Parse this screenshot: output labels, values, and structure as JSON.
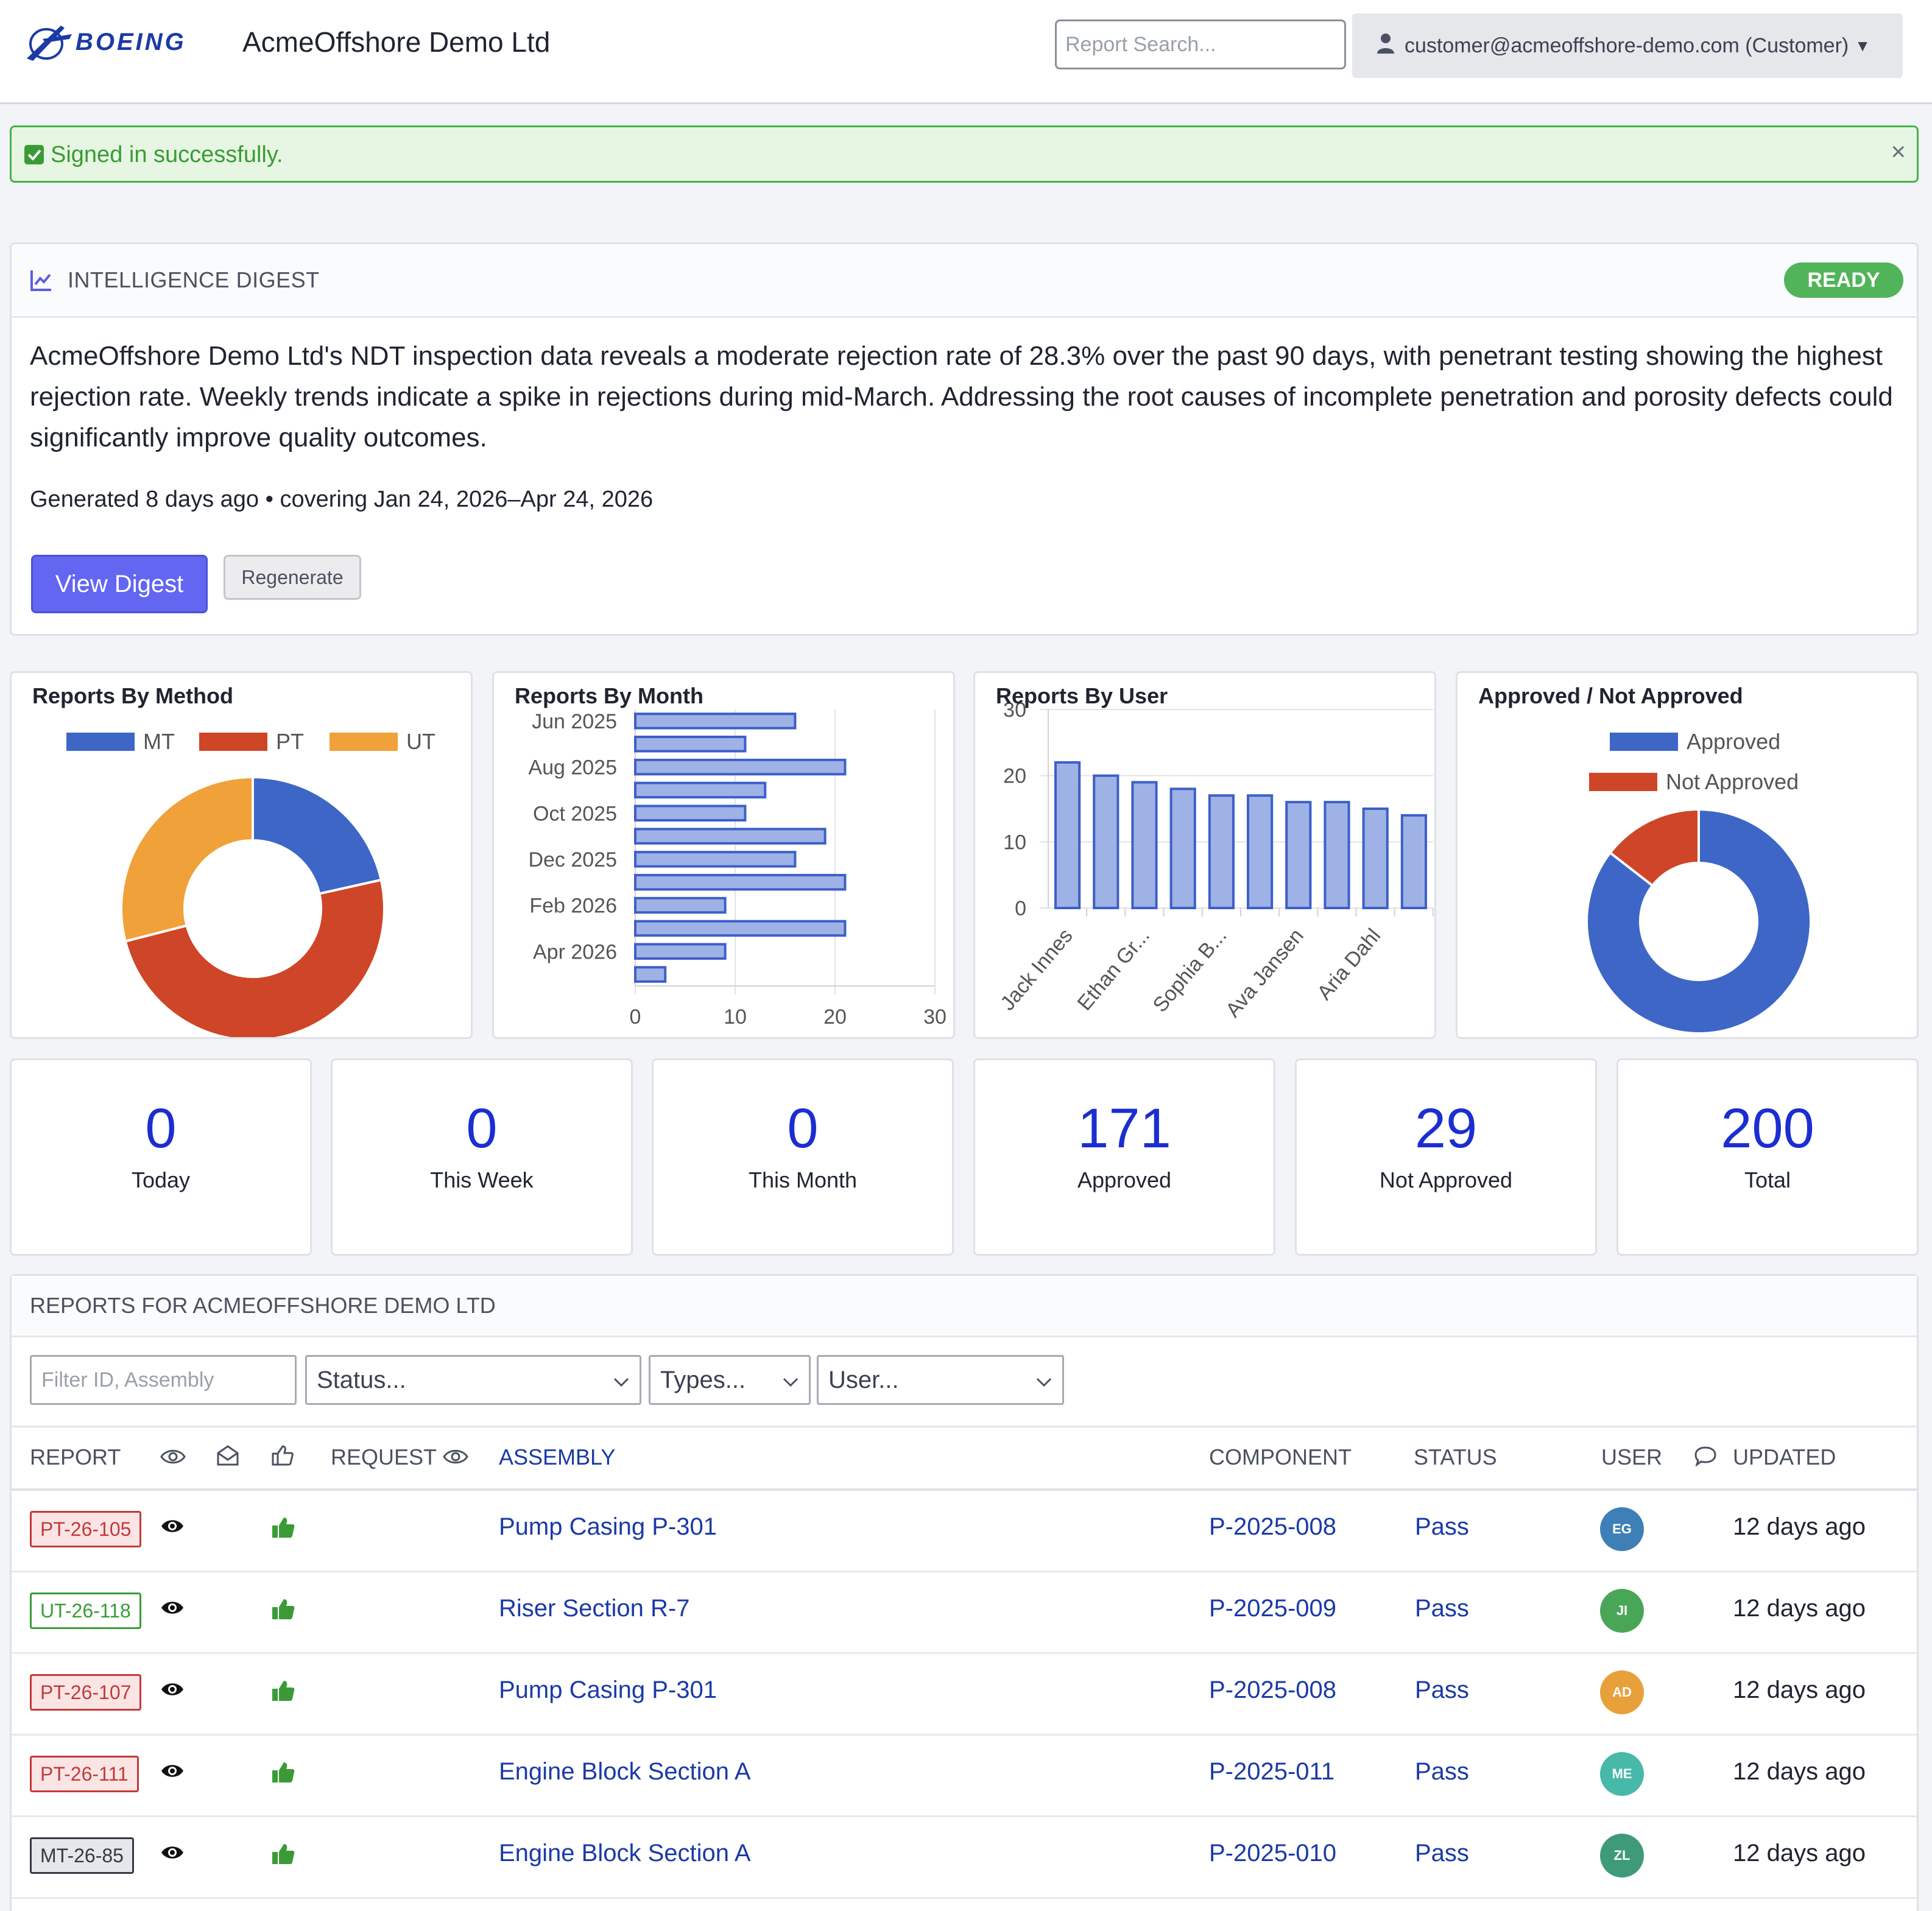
{
  "header": {
    "logo_text": "BOEING",
    "company": "AcmeOffshore Demo Ltd",
    "search_placeholder": "Report Search...",
    "user_label": "customer@acmeoffshore-demo.com (Customer)"
  },
  "alert": {
    "text": "Signed in successfully.",
    "close": "×"
  },
  "digest": {
    "title": "INTELLIGENCE DIGEST",
    "status": "READY",
    "summary": "AcmeOffshore Demo Ltd's NDT inspection data reveals a moderate rejection rate of 28.3% over the past 90 days, with penetrant testing showing the highest rejection rate. Weekly trends indicate a spike in rejections during mid-March. Addressing the root causes of incomplete penetration and porosity defects could significantly improve quality outcomes.",
    "meta": "Generated 8 days ago • covering Jan 24, 2026–Apr 24, 2026",
    "view_label": "View Digest",
    "regenerate_label": "Regenerate"
  },
  "chart_data": [
    {
      "type": "pie",
      "title": "Reports By Method",
      "labels": [
        "MT",
        "PT",
        "UT"
      ],
      "values": [
        43,
        99,
        58
      ],
      "colors": [
        "#3d66c7",
        "#cf4527",
        "#f0a13a"
      ],
      "legend": "top"
    },
    {
      "type": "bar",
      "orientation": "horizontal",
      "title": "Reports By Month",
      "categories": [
        "Jun 2025",
        "Jul 2025",
        "Aug 2025",
        "Sep 2025",
        "Oct 2025",
        "Nov 2025",
        "Dec 2025",
        "Jan 2026",
        "Feb 2026",
        "Mar 2026",
        "Apr 2026",
        "May 2026"
      ],
      "tick_labels": [
        "Jun 2025",
        "Aug 2025",
        "Oct 2025",
        "Dec 2025",
        "Feb 2026",
        "Apr 2026"
      ],
      "values": [
        16,
        11,
        21,
        13,
        11,
        19,
        16,
        21,
        9,
        21,
        9,
        3
      ],
      "xlim": [
        0,
        30
      ],
      "xticks": [
        0,
        10,
        20,
        30
      ],
      "color": "#9fb2e6",
      "edge": "#3d5fc7",
      "grid": true
    },
    {
      "type": "bar",
      "title": "Reports By User",
      "categories": [
        "Jack Innes",
        "",
        "Ethan Gr...",
        "",
        "Sophia B...",
        "",
        "Ava Jansen",
        "",
        "Aria Dahl",
        ""
      ],
      "values": [
        22,
        20,
        19,
        18,
        17,
        17,
        16,
        16,
        15,
        14
      ],
      "ylim": [
        0,
        30
      ],
      "yticks": [
        0,
        10,
        20,
        30
      ],
      "color": "#9fb2e6",
      "edge": "#3d5fc7",
      "grid": true
    },
    {
      "type": "pie",
      "title": "Approved / Not Approved",
      "labels": [
        "Approved",
        "Not Approved"
      ],
      "values": [
        171,
        29
      ],
      "colors": [
        "#3d66c7",
        "#cf4527"
      ],
      "legend": "top"
    }
  ],
  "stats": [
    {
      "value": "0",
      "label": "Today"
    },
    {
      "value": "0",
      "label": "This Week"
    },
    {
      "value": "0",
      "label": "This Month"
    },
    {
      "value": "171",
      "label": "Approved"
    },
    {
      "value": "29",
      "label": "Not Approved"
    },
    {
      "value": "200",
      "label": "Total"
    }
  ],
  "reports": {
    "title": "REPORTS FOR ACMEOFFSHORE DEMO LTD",
    "filter_placeholder": "Filter ID, Assembly",
    "status_select": "Status...",
    "types_select": "Types...",
    "user_select": "User...",
    "columns": {
      "report": "REPORT",
      "request": "REQUEST",
      "assembly": "ASSEMBLY",
      "component": "COMPONENT",
      "status": "STATUS",
      "user": "USER",
      "updated": "UPDATED"
    },
    "rows": [
      {
        "id": "PT-26-105",
        "method": "pt",
        "assembly": "Pump Casing P-301",
        "component": "P-2025-008",
        "status": "Pass",
        "initials": "EG",
        "avatar_color": "#3f7fb7",
        "updated": "12 days ago"
      },
      {
        "id": "UT-26-118",
        "method": "ut",
        "assembly": "Riser Section R-7",
        "component": "P-2025-009",
        "status": "Pass",
        "initials": "JI",
        "avatar_color": "#4aa657",
        "updated": "12 days ago"
      },
      {
        "id": "PT-26-107",
        "method": "pt",
        "assembly": "Pump Casing P-301",
        "component": "P-2025-008",
        "status": "Pass",
        "initials": "AD",
        "avatar_color": "#e8a03a",
        "updated": "12 days ago"
      },
      {
        "id": "PT-26-111",
        "method": "pt",
        "assembly": "Engine Block Section A",
        "component": "P-2025-011",
        "status": "Pass",
        "initials": "ME",
        "avatar_color": "#48b8a8",
        "updated": "12 days ago"
      },
      {
        "id": "MT-26-85",
        "method": "mt",
        "assembly": "Engine Block Section A",
        "component": "P-2025-010",
        "status": "Pass",
        "initials": "ZL",
        "avatar_color": "#3f9a78",
        "updated": "12 days ago"
      }
    ]
  }
}
